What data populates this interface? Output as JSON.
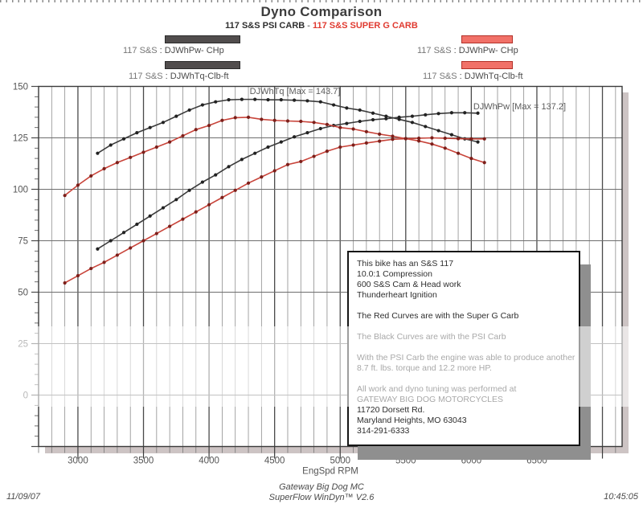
{
  "header": {
    "title": "Dyno Comparison",
    "subtitle_left": "117 S&S PSI CARB",
    "subtitle_sep": " - ",
    "subtitle_right": "117 S&S SUPER G CARB"
  },
  "legend": {
    "left": {
      "prefix": "117 S&S",
      "power_label": ": DJWhPw- CHp",
      "torque_label": ": DJWhTq-Clb-ft"
    },
    "right": {
      "prefix": "117 S&S",
      "power_label": ": DJWhPw- CHp",
      "torque_label": ": DJWhTq-Clb-ft"
    }
  },
  "colors": {
    "black_series": "#3b3b3b",
    "red_series": "#c8443a",
    "black_swatch": "#514d4d",
    "red_swatch": "#f17168",
    "subtitle_red": "#e03a30",
    "axis_text": "#555555",
    "annotation_text": "#5c5c5c"
  },
  "chart_data": {
    "type": "line",
    "title": "Dyno Comparison",
    "xlabel": "EngSpd  RPM",
    "ylabel": "",
    "x_domain": [
      2700,
      7150
    ],
    "y_domain": [
      -25,
      150
    ],
    "x_ticks_major": [
      3000,
      3500,
      4000,
      4500,
      5000,
      5500,
      6000,
      6500
    ],
    "x_minor_step": 100,
    "y_ticks_labeled": [
      150,
      125,
      100,
      75,
      50,
      25,
      0
    ],
    "y_minor_step": 5,
    "grid": "on",
    "series": [
      {
        "name": "PSI Carb torque DJWhTq-Clb-ft",
        "color": "#3b3b3b",
        "dot_color": "#222222",
        "x_start": 3150,
        "x_step": 100,
        "values": [
          117.5,
          121.5,
          124.5,
          127.5,
          130,
          132.5,
          135.5,
          138.5,
          141,
          142.5,
          143.5,
          143.7,
          143.7,
          143.5,
          143.5,
          143.3,
          143,
          142.5,
          141,
          139.5,
          138.5,
          137,
          135.5,
          134,
          132.5,
          130.5,
          128.5,
          126.5,
          124.5,
          123
        ]
      },
      {
        "name": "PSI Carb power DJWhPw-CHp",
        "color": "#3b3b3b",
        "dot_color": "#222222",
        "x_start": 3150,
        "x_step": 100,
        "values": [
          71,
          75,
          79,
          83,
          87,
          91,
          95,
          99.5,
          103.5,
          107,
          111,
          114.5,
          117.5,
          120.5,
          123,
          125.5,
          127.5,
          129.5,
          131,
          132,
          133,
          133.8,
          134.3,
          135,
          135.5,
          136.2,
          136.8,
          137.2,
          137.2,
          137
        ]
      },
      {
        "name": "Super G Carb torque DJWhTq-Clb-ft",
        "color": "#c8443a",
        "dot_color": "#7d1f1a",
        "x_start": 2900,
        "x_step": 100,
        "values": [
          97,
          102,
          106.5,
          110,
          113,
          115.5,
          118,
          120.5,
          123,
          126,
          129,
          131,
          133.5,
          134.8,
          135,
          134,
          133.5,
          133.2,
          133,
          132.5,
          131.5,
          130,
          129.3,
          128,
          126.8,
          125.8,
          124.6,
          123.5,
          122,
          120,
          117.5,
          115,
          113
        ]
      },
      {
        "name": "Super G Carb power DJWhPw-CHp",
        "color": "#c8443a",
        "dot_color": "#7d1f1a",
        "x_start": 2900,
        "x_step": 100,
        "values": [
          54.5,
          58,
          61.5,
          64.5,
          68,
          71.5,
          75,
          78.5,
          82,
          85.5,
          89,
          92.5,
          96,
          99.5,
          103,
          106,
          109,
          112,
          113.5,
          116,
          118.5,
          120.5,
          121.5,
          122.5,
          123.4,
          124.3,
          124.6,
          124.8,
          125,
          124.8,
          124.6,
          124.5,
          124.5
        ]
      }
    ],
    "annotations": [
      {
        "text": "DJWhTq [Max = 143.7]",
        "rpm": 4310,
        "value": 146.2
      },
      {
        "text": "DJWhPw [Max = 137.2]",
        "rpm": 6015,
        "value": 138.8
      }
    ]
  },
  "note_box": {
    "lines": [
      "This bike has an S&S 117",
      "10.0:1 Compression",
      "600 S&S Cam & Head work",
      "Thunderheart Ignition",
      "",
      "The Red Curves are with the Super G Carb",
      "",
      "The Black Curves are with the PSI Carb",
      "",
      "With the PSI Carb the engine was able to produce another",
      "8.7 ft. lbs. torque and 12.2 more HP.",
      "",
      "All work and dyno tuning was performed at",
      "GATEWAY BIG DOG MOTORCYCLES",
      "11720 Dorsett Rd.",
      "Maryland Heights, MO 63043",
      "314-291-6333"
    ]
  },
  "footer": {
    "date": "11/09/07",
    "center_line1": "Gateway Big Dog MC",
    "center_line2": "SuperFlow WinDyn™ V2.6",
    "time": "10:45:05"
  }
}
